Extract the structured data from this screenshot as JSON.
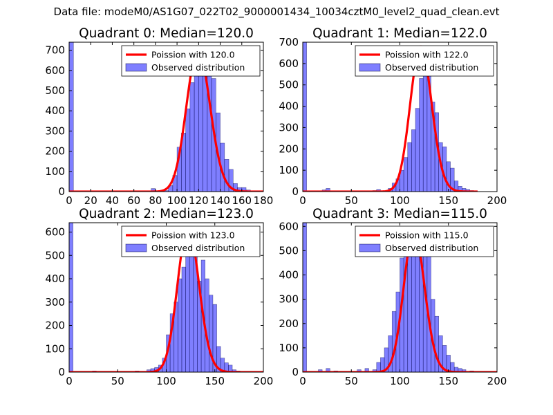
{
  "figure": {
    "title": "Data file: modeM0/AS1G07_022T02_9000001434_10034cztM0_level2_quad_clean.evt"
  },
  "chart_data": [
    {
      "type": "bar",
      "title": "Quadrant 0: Median=120.0",
      "median": 120.0,
      "xlim": [
        0,
        180
      ],
      "ylim": [
        0,
        740
      ],
      "xticks": [
        0,
        20,
        40,
        60,
        80,
        100,
        120,
        140,
        160,
        180
      ],
      "yticks": [
        0,
        100,
        200,
        300,
        400,
        500,
        600,
        700
      ],
      "legend": {
        "placement": "top-right",
        "line_label": "Poission with 120.0",
        "bar_label": "Observed distribution"
      },
      "bin_width": 4,
      "bins": [
        [
          0,
          740
        ],
        [
          76,
          15
        ],
        [
          88,
          5
        ],
        [
          92,
          30
        ],
        [
          96,
          80
        ],
        [
          100,
          220
        ],
        [
          104,
          290
        ],
        [
          108,
          410
        ],
        [
          112,
          540
        ],
        [
          116,
          620
        ],
        [
          120,
          700
        ],
        [
          124,
          680
        ],
        [
          128,
          600
        ],
        [
          132,
          560
        ],
        [
          136,
          390
        ],
        [
          140,
          240
        ],
        [
          144,
          160
        ],
        [
          148,
          110
        ],
        [
          152,
          40
        ],
        [
          156,
          20
        ],
        [
          160,
          20
        ],
        [
          164,
          8
        ]
      ],
      "curve": {
        "mean": 120.0,
        "peak": 700,
        "xrange": [
          0,
          180
        ]
      }
    },
    {
      "type": "bar",
      "title": "Quadrant 1: Median=122.0",
      "median": 122.0,
      "xlim": [
        0,
        200
      ],
      "ylim": [
        0,
        700
      ],
      "xticks": [
        0,
        50,
        100,
        150,
        200
      ],
      "yticks": [
        0,
        100,
        200,
        300,
        400,
        500,
        600,
        700
      ],
      "legend": {
        "placement": "top-right",
        "line_label": "Poission with 122.0",
        "bar_label": "Observed distribution"
      },
      "bin_width": 4,
      "bins": [
        [
          0,
          700
        ],
        [
          20,
          8
        ],
        [
          24,
          15
        ],
        [
          72,
          5
        ],
        [
          76,
          10
        ],
        [
          88,
          15
        ],
        [
          92,
          40
        ],
        [
          96,
          60
        ],
        [
          100,
          100
        ],
        [
          104,
          160
        ],
        [
          108,
          230
        ],
        [
          112,
          290
        ],
        [
          116,
          390
        ],
        [
          120,
          530
        ],
        [
          124,
          620
        ],
        [
          128,
          570
        ],
        [
          132,
          420
        ],
        [
          136,
          370
        ],
        [
          140,
          230
        ],
        [
          144,
          210
        ],
        [
          148,
          140
        ],
        [
          152,
          110
        ],
        [
          156,
          50
        ],
        [
          160,
          25
        ],
        [
          164,
          15
        ],
        [
          168,
          10
        ],
        [
          172,
          5
        ]
      ],
      "curve": {
        "mean": 122.0,
        "peak": 680,
        "xrange": [
          0,
          180
        ]
      }
    },
    {
      "type": "bar",
      "title": "Quadrant 2: Median=123.0",
      "median": 123.0,
      "xlim": [
        0,
        200
      ],
      "ylim": [
        0,
        640
      ],
      "xticks": [
        0,
        50,
        100,
        150,
        200
      ],
      "yticks": [
        0,
        100,
        200,
        300,
        400,
        500,
        600
      ],
      "legend": {
        "placement": "top-right",
        "line_label": "Poission with 123.0",
        "bar_label": "Observed distribution"
      },
      "bin_width": 4,
      "bins": [
        [
          0,
          640
        ],
        [
          24,
          5
        ],
        [
          68,
          5
        ],
        [
          80,
          10
        ],
        [
          84,
          15
        ],
        [
          88,
          20
        ],
        [
          92,
          30
        ],
        [
          96,
          60
        ],
        [
          100,
          160
        ],
        [
          104,
          250
        ],
        [
          108,
          300
        ],
        [
          112,
          400
        ],
        [
          116,
          450
        ],
        [
          120,
          550
        ],
        [
          124,
          590
        ],
        [
          128,
          600
        ],
        [
          132,
          390
        ],
        [
          136,
          480
        ],
        [
          140,
          400
        ],
        [
          144,
          330
        ],
        [
          148,
          290
        ],
        [
          152,
          110
        ],
        [
          156,
          60
        ],
        [
          160,
          40
        ],
        [
          164,
          30
        ],
        [
          168,
          10
        ],
        [
          172,
          5
        ]
      ],
      "curve": {
        "mean": 123.0,
        "peak": 620,
        "xrange": [
          0,
          200
        ]
      }
    },
    {
      "type": "bar",
      "title": "Quadrant 3: Median=115.0",
      "median": 115.0,
      "xlim": [
        0,
        200
      ],
      "ylim": [
        0,
        615
      ],
      "xticks": [
        0,
        50,
        100,
        150,
        200
      ],
      "yticks": [
        0,
        100,
        200,
        300,
        400,
        500,
        600
      ],
      "legend": {
        "placement": "top-right",
        "line_label": "Poission with 115.0",
        "bar_label": "Observed distribution"
      },
      "bin_width": 4,
      "bins": [
        [
          0,
          615
        ],
        [
          16,
          10
        ],
        [
          24,
          15
        ],
        [
          32,
          5
        ],
        [
          56,
          10
        ],
        [
          64,
          15
        ],
        [
          72,
          10
        ],
        [
          76,
          40
        ],
        [
          80,
          60
        ],
        [
          84,
          100
        ],
        [
          88,
          150
        ],
        [
          92,
          250
        ],
        [
          96,
          330
        ],
        [
          100,
          470
        ],
        [
          104,
          500
        ],
        [
          108,
          560
        ],
        [
          112,
          590
        ],
        [
          116,
          570
        ],
        [
          120,
          580
        ],
        [
          124,
          540
        ],
        [
          128,
          490
        ],
        [
          132,
          300
        ],
        [
          136,
          230
        ],
        [
          140,
          150
        ],
        [
          144,
          110
        ],
        [
          148,
          70
        ],
        [
          152,
          40
        ],
        [
          156,
          20
        ],
        [
          160,
          15
        ],
        [
          164,
          10
        ],
        [
          172,
          5
        ]
      ],
      "curve": {
        "mean": 115.0,
        "peak": 580,
        "xrange": [
          0,
          200
        ]
      }
    }
  ]
}
